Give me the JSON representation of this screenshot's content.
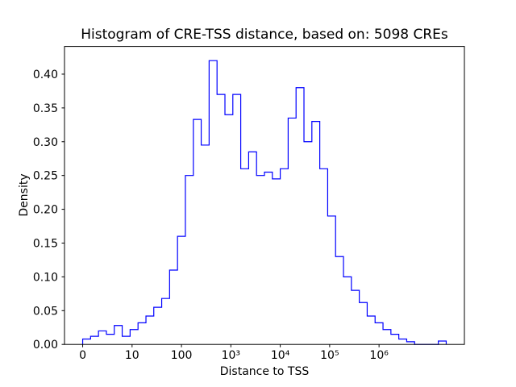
{
  "window": {
    "background": "#ffffff"
  },
  "chart_data": {
    "type": "histogram",
    "histtype": "step",
    "title": "Histogram of CRE-TSS distance, based on: 5098 CREs",
    "xlabel": "Distance to TSS",
    "ylabel": "Density",
    "n_cres": 5098,
    "line_color": "#0000ff",
    "axes_color": "#000000",
    "grid": false,
    "legend": "none",
    "x_scale": "symlog",
    "symlog_linthresh": 10,
    "xlim_transformed": [
      -0.368,
      7.728
    ],
    "ylim": [
      0,
      0.441
    ],
    "x_ticks": [
      {
        "value": 0,
        "label": "0"
      },
      {
        "value": 10,
        "label": "10"
      },
      {
        "value": 100,
        "label": "100"
      },
      {
        "value": 1000,
        "label": "10³"
      },
      {
        "value": 10000,
        "label": "10⁴"
      },
      {
        "value": 100000,
        "label": "10⁵"
      },
      {
        "value": 1000000,
        "label": "10⁶"
      }
    ],
    "y_ticks": [
      {
        "value": 0.0,
        "label": "0.00"
      },
      {
        "value": 0.05,
        "label": "0.05"
      },
      {
        "value": 0.1,
        "label": "0.10"
      },
      {
        "value": 0.15,
        "label": "0.15"
      },
      {
        "value": 0.2,
        "label": "0.20"
      },
      {
        "value": 0.25,
        "label": "0.25"
      },
      {
        "value": 0.3,
        "label": "0.30"
      },
      {
        "value": 0.35,
        "label": "0.35"
      },
      {
        "value": 0.4,
        "label": "0.40"
      }
    ],
    "bin_edges": [
      0,
      1.6,
      3.2,
      4.8,
      6.4,
      8,
      9.6,
      13.2,
      19.1,
      27.5,
      39.8,
      57.5,
      83.2,
      120,
      174,
      251,
      363,
      525,
      759,
      1096,
      1585,
      2291,
      3311,
      4786,
      6918,
      10000,
      14454,
      20893,
      30200,
      43652,
      63096,
      91201,
      131826,
      190546,
      275423,
      398107,
      575440,
      831764,
      1202264,
      1737801,
      2511886,
      3630781,
      5248075,
      7585776,
      10964782,
      15848932,
      22908677
    ],
    "densities": [
      0.008,
      0.012,
      0.02,
      0.015,
      0.028,
      0.012,
      0.022,
      0.032,
      0.042,
      0.055,
      0.068,
      0.11,
      0.16,
      0.25,
      0.333,
      0.295,
      0.42,
      0.37,
      0.34,
      0.37,
      0.26,
      0.285,
      0.25,
      0.255,
      0.245,
      0.26,
      0.335,
      0.38,
      0.3,
      0.33,
      0.26,
      0.19,
      0.13,
      0.1,
      0.08,
      0.062,
      0.042,
      0.032,
      0.022,
      0.015,
      0.008,
      0.004,
      0,
      0,
      0,
      0.005
    ]
  }
}
